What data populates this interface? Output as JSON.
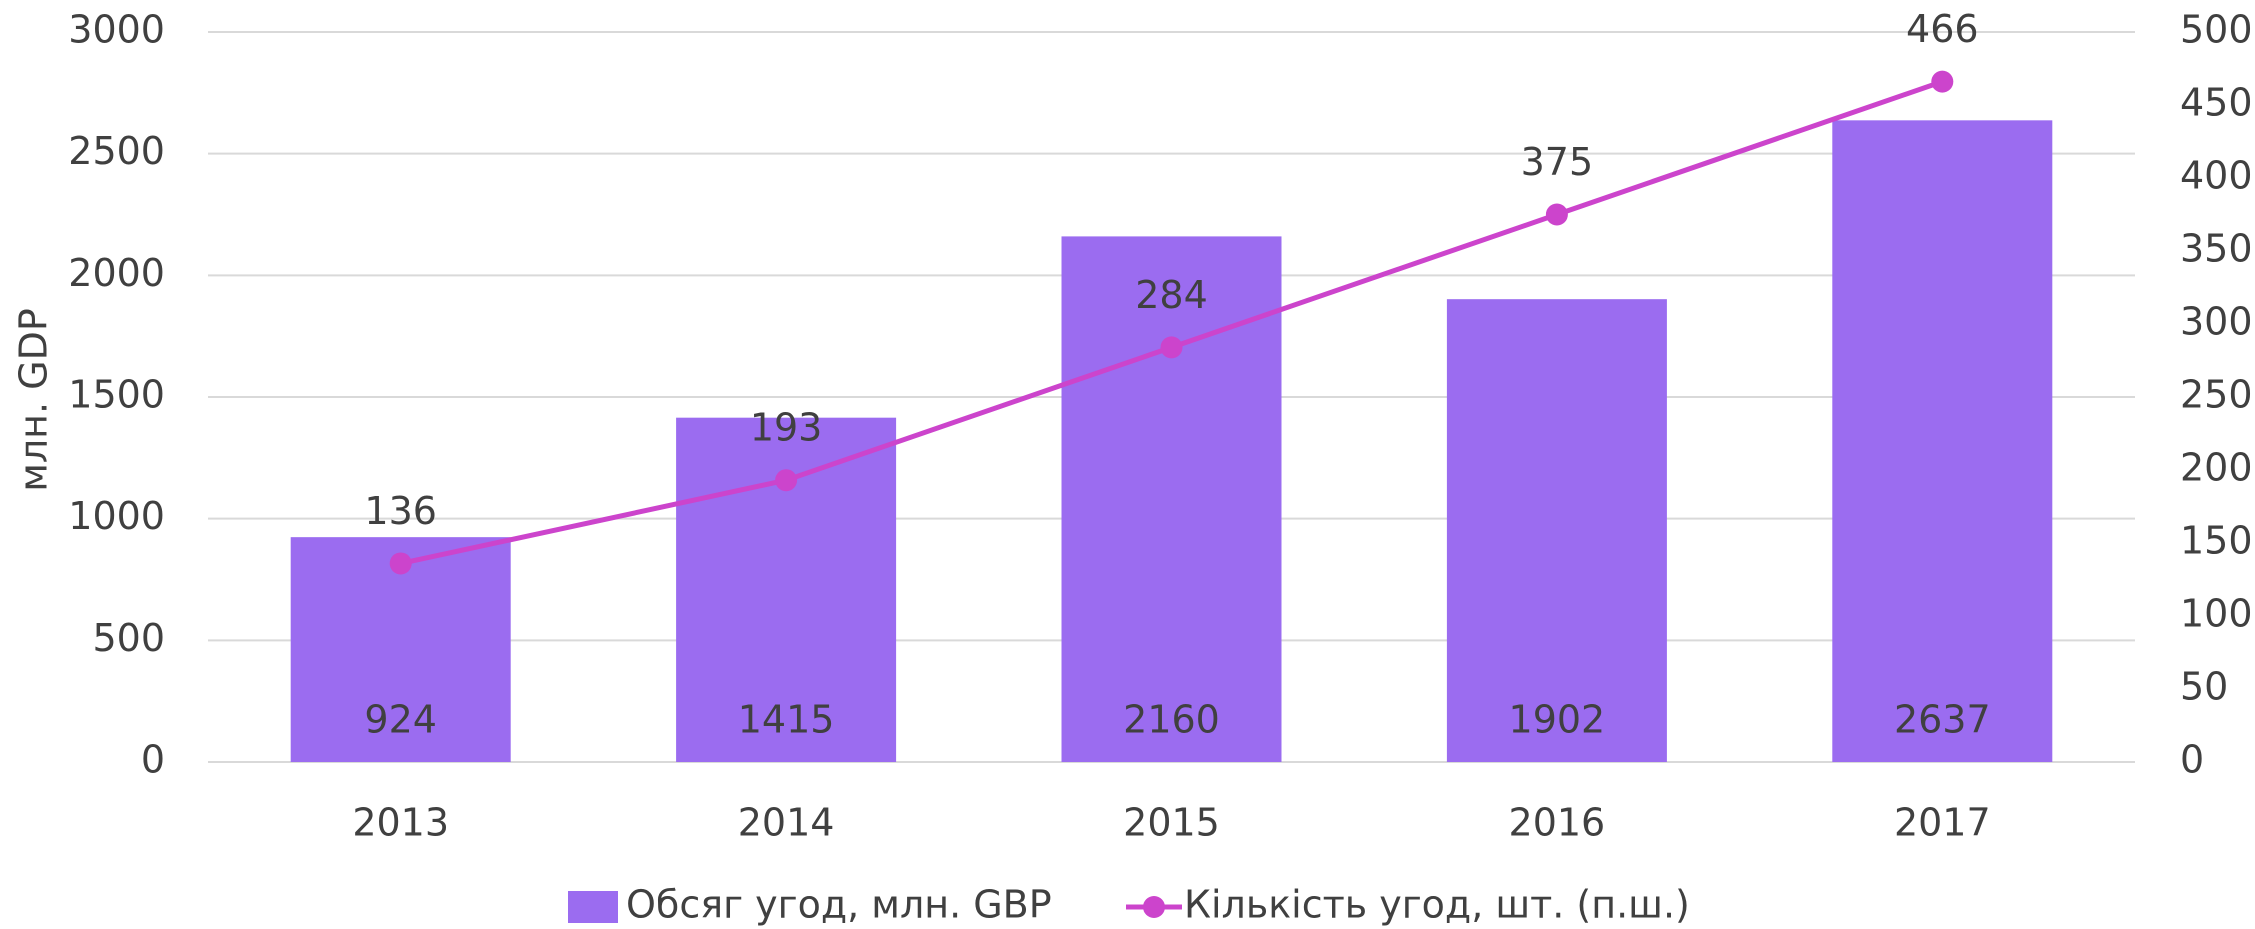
{
  "chart_data": {
    "type": "bar",
    "y_axis_label": "млн. GDP",
    "categories": [
      "2013",
      "2014",
      "2015",
      "2016",
      "2017"
    ],
    "series": [
      {
        "name": "Обсяг угод, млн. GBP",
        "type": "bar",
        "color": "#9b6cf0",
        "values": [
          924,
          1415,
          2160,
          1902,
          2637
        ]
      },
      {
        "name": "Кількість угод, шт. (п.ш.)",
        "type": "line",
        "axis": "y2",
        "color": "#cc44cc",
        "values": [
          136,
          193,
          284,
          375,
          466
        ]
      }
    ],
    "ylim": [
      0,
      3000
    ],
    "yticks": [
      0,
      500,
      1000,
      1500,
      2000,
      2500,
      3000
    ],
    "y2lim": [
      0,
      500
    ],
    "y2ticks": [
      0,
      50,
      100,
      150,
      200,
      250,
      300,
      350,
      400,
      450,
      500
    ],
    "grid": true,
    "legend": "bottom"
  }
}
